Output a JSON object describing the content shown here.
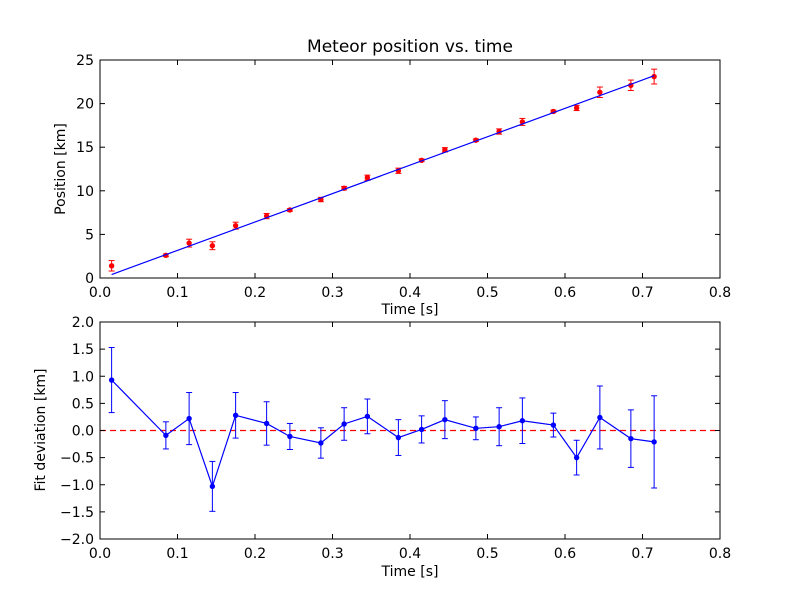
{
  "chart_data": [
    {
      "type": "scatter",
      "title": "Meteor position vs. time",
      "xlabel": "Time [s]",
      "ylabel": "Position [km]",
      "xlim": [
        0.0,
        0.8
      ],
      "ylim": [
        0,
        25
      ],
      "x_ticks": [
        "0.0",
        "0.1",
        "0.2",
        "0.3",
        "0.4",
        "0.5",
        "0.6",
        "0.7",
        "0.8"
      ],
      "y_ticks": [
        "0",
        "5",
        "10",
        "15",
        "20",
        "25"
      ],
      "grid": false,
      "series": [
        {
          "kind": "errorbar-points",
          "color": "#ff0000",
          "x": [
            0.015,
            0.085,
            0.115,
            0.145,
            0.175,
            0.215,
            0.245,
            0.285,
            0.315,
            0.345,
            0.385,
            0.415,
            0.445,
            0.485,
            0.515,
            0.545,
            0.585,
            0.615,
            0.645,
            0.685,
            0.715
          ],
          "y": [
            1.4,
            2.6,
            4.0,
            3.7,
            6.0,
            7.1,
            7.8,
            9.0,
            10.3,
            11.5,
            12.3,
            13.5,
            14.7,
            15.8,
            16.8,
            17.9,
            19.1,
            19.5,
            21.3,
            22.1,
            23.1
          ],
          "yerr": [
            0.6,
            0.15,
            0.45,
            0.45,
            0.4,
            0.3,
            0.15,
            0.25,
            0.2,
            0.3,
            0.3,
            0.15,
            0.25,
            0.15,
            0.3,
            0.4,
            0.15,
            0.3,
            0.6,
            0.6,
            0.85
          ]
        },
        {
          "kind": "fit-line",
          "color": "#0000ff",
          "x": [
            0.015,
            0.715
          ],
          "y": [
            0.4,
            23.2
          ]
        }
      ]
    },
    {
      "type": "line",
      "xlabel": "Time [s]",
      "ylabel": "Fit deviation [km]",
      "xlim": [
        0.0,
        0.8
      ],
      "ylim": [
        -2.0,
        2.0
      ],
      "x_ticks": [
        "0.0",
        "0.1",
        "0.2",
        "0.3",
        "0.4",
        "0.5",
        "0.6",
        "0.7",
        "0.8"
      ],
      "y_ticks": [
        "2.0",
        "1.5",
        "1.0",
        "0.5",
        "0.0",
        "−0.5",
        "−1.0",
        "−1.5",
        "−2.0"
      ],
      "grid": false,
      "reference_line": {
        "y": 0.0,
        "color": "#ff0000",
        "style": "dashed"
      },
      "series": [
        {
          "kind": "errorbar-line",
          "color": "#0000ff",
          "x": [
            0.015,
            0.085,
            0.115,
            0.145,
            0.175,
            0.215,
            0.245,
            0.285,
            0.315,
            0.345,
            0.385,
            0.415,
            0.445,
            0.485,
            0.515,
            0.545,
            0.585,
            0.615,
            0.645,
            0.685,
            0.715
          ],
          "y": [
            0.93,
            -0.09,
            0.22,
            -1.03,
            0.28,
            0.13,
            -0.11,
            -0.23,
            0.12,
            0.26,
            -0.13,
            0.02,
            0.2,
            0.04,
            0.07,
            0.18,
            0.1,
            -0.5,
            0.24,
            -0.15,
            -0.21
          ],
          "yerr": [
            0.6,
            0.25,
            0.48,
            0.46,
            0.42,
            0.4,
            0.24,
            0.28,
            0.3,
            0.32,
            0.33,
            0.25,
            0.35,
            0.21,
            0.35,
            0.42,
            0.22,
            0.32,
            0.58,
            0.53,
            0.85
          ]
        }
      ]
    }
  ]
}
